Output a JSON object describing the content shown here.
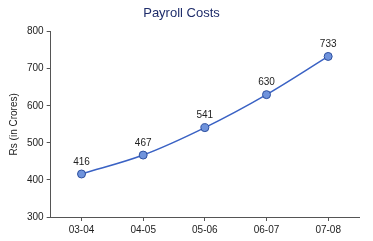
{
  "chart_data": {
    "type": "line",
    "title": "Payroll Costs",
    "y_label": "Rs (in Crores)",
    "categories": [
      "03-04",
      "04-05",
      "05-06",
      "06-07",
      "07-08"
    ],
    "values": [
      416,
      467,
      541,
      630,
      733
    ],
    "color": "#3a62c4",
    "marker": "circle",
    "line_style": "solid",
    "ylim": [
      300,
      800
    ],
    "yticks": [
      300,
      400,
      500,
      600,
      700,
      800
    ],
    "grid": false,
    "data_labels": true
  }
}
